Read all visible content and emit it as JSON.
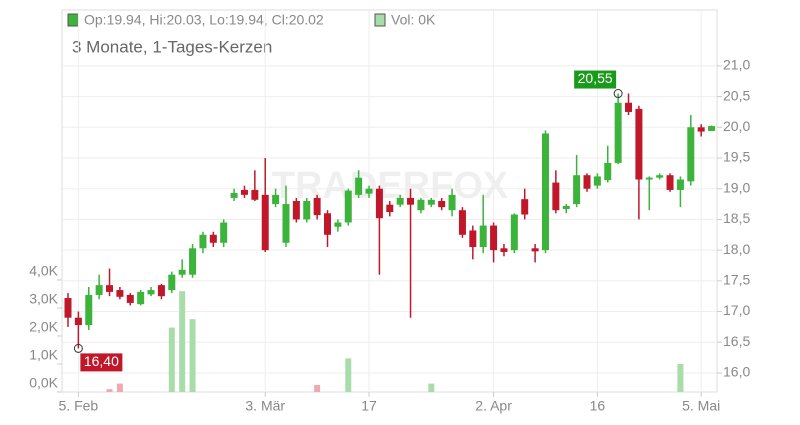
{
  "chart_data": {
    "type": "candlestick",
    "title": "3 Monate, 1-Tages-Kerzen",
    "ohlc_text": "Op:19.94, Hi:20.03, Lo:19.94, Cl:20.02",
    "volume_text": "Vol: 0K",
    "watermark": "TRADERFOX",
    "up_color": "#3cb43c",
    "down_color": "#c0182a",
    "volume_up_color": "#a8dca8",
    "volume_down_color": "#f2a8b0",
    "categories": [
      null,
      "5. Feb",
      null,
      null,
      null,
      null,
      null,
      null,
      null,
      null,
      null,
      null,
      null,
      null,
      null,
      null,
      null,
      null,
      null,
      "3. Mär",
      null,
      null,
      null,
      null,
      null,
      null,
      null,
      null,
      null,
      "17",
      null,
      null,
      null,
      null,
      null,
      null,
      null,
      null,
      null,
      null,
      null,
      "2. Apr",
      null,
      null,
      null,
      null,
      null,
      null,
      null,
      null,
      null,
      "16",
      null,
      null,
      null,
      null,
      null,
      null,
      null,
      null,
      null,
      "5. Mai",
      null
    ],
    "open": [
      17.22,
      16.9,
      16.78,
      17.27,
      17.43,
      17.35,
      17.27,
      17.12,
      17.28,
      17.43,
      17.35,
      17.6,
      17.6,
      18.03,
      18.25,
      18.12,
      18.85,
      18.98,
      18.98,
      18.9,
      18.75,
      18.12,
      18.8,
      18.5,
      18.85,
      18.6,
      18.38,
      18.45,
      18.9,
      18.92,
      19.0,
      18.74,
      18.74,
      18.85,
      18.65,
      18.74,
      18.8,
      18.65,
      18.65,
      18.32,
      18.05,
      18.4,
      18.03,
      18.0,
      18.83,
      18.03,
      18.0,
      19.1,
      18.67,
      18.75,
      19.22,
      19.05,
      19.14,
      19.42,
      20.4,
      20.3,
      19.15,
      19.18,
      19.22,
      18.98,
      19.12,
      20.0,
      19.94
    ],
    "high": [
      17.3,
      17.0,
      17.4,
      17.6,
      17.7,
      17.4,
      17.3,
      17.35,
      17.4,
      17.45,
      17.65,
      17.85,
      18.1,
      18.3,
      18.3,
      18.5,
      19.0,
      19.05,
      19.3,
      19.5,
      19.0,
      19.05,
      18.85,
      18.85,
      18.9,
      18.65,
      18.5,
      19.0,
      19.3,
      19.05,
      19.05,
      18.8,
      18.9,
      19.0,
      18.85,
      18.85,
      18.85,
      19.0,
      18.7,
      18.4,
      18.9,
      18.45,
      18.1,
      18.6,
      19.0,
      18.1,
      19.95,
      19.3,
      18.75,
      19.55,
      19.25,
      19.25,
      19.7,
      20.55,
      20.55,
      20.35,
      19.2,
      19.25,
      19.25,
      19.2,
      20.2,
      20.05,
      20.03
    ],
    "low": [
      16.75,
      16.4,
      16.7,
      17.2,
      17.25,
      17.2,
      17.1,
      17.1,
      17.25,
      17.2,
      17.3,
      17.55,
      17.55,
      17.95,
      18.05,
      18.05,
      18.8,
      18.85,
      18.8,
      17.97,
      18.7,
      18.05,
      18.45,
      18.45,
      18.5,
      18.05,
      18.3,
      18.4,
      18.85,
      18.85,
      17.6,
      18.55,
      18.7,
      16.9,
      18.6,
      18.7,
      18.65,
      18.55,
      18.2,
      17.85,
      17.95,
      17.8,
      17.9,
      17.95,
      18.5,
      17.8,
      17.95,
      18.6,
      18.6,
      18.7,
      18.95,
      19.0,
      19.1,
      19.4,
      20.2,
      18.5,
      18.65,
      19.15,
      18.95,
      18.7,
      19.05,
      19.85,
      19.94
    ],
    "close": [
      16.9,
      16.78,
      17.27,
      17.43,
      17.32,
      17.24,
      17.14,
      17.32,
      17.35,
      17.25,
      17.6,
      17.68,
      18.03,
      18.25,
      18.12,
      18.45,
      18.93,
      18.9,
      18.82,
      18.0,
      18.9,
      18.75,
      18.5,
      18.8,
      18.57,
      18.25,
      18.45,
      18.97,
      19.18,
      19.0,
      18.52,
      18.62,
      18.85,
      18.74,
      18.82,
      18.82,
      18.7,
      18.9,
      18.25,
      18.05,
      18.4,
      18.0,
      17.97,
      18.58,
      18.58,
      17.98,
      19.9,
      18.65,
      18.72,
      19.22,
      19.0,
      19.2,
      19.42,
      20.4,
      20.25,
      19.15,
      19.18,
      19.22,
      18.98,
      19.15,
      20.0,
      19.93,
      20.02
    ],
    "volume": [
      0,
      0,
      0,
      0,
      0.1,
      0.3,
      0,
      0,
      0,
      0,
      2.3,
      3.6,
      2.6,
      0,
      0,
      0,
      0,
      0,
      0,
      0,
      0,
      0,
      0,
      0,
      0.25,
      0,
      0,
      1.2,
      0,
      0,
      0,
      0,
      0,
      0,
      0,
      0.3,
      0,
      0,
      0,
      0,
      0,
      0,
      0,
      0,
      0,
      0,
      0,
      0,
      0,
      0,
      0,
      0,
      0,
      0,
      0,
      0,
      0,
      0,
      0,
      1.0,
      0,
      0,
      0
    ],
    "ylim": [
      15.69,
      21.91
    ],
    "yticks": [
      {
        "value": 16,
        "label": "16,0"
      },
      {
        "value": 16.5,
        "label": "16,5"
      },
      {
        "value": 17,
        "label": "17,0"
      },
      {
        "value": 17.5,
        "label": "17,5"
      },
      {
        "value": 18,
        "label": "18,0"
      },
      {
        "value": 18.5,
        "label": "18,5"
      },
      {
        "value": 19,
        "label": "19,0"
      },
      {
        "value": 19.5,
        "label": "19,5"
      },
      {
        "value": 20,
        "label": "20,0"
      },
      {
        "value": 20.5,
        "label": "20,5"
      },
      {
        "value": 21,
        "label": "21,0"
      }
    ],
    "volume_lim": [
      0,
      13.64
    ],
    "volume_ticks": [
      {
        "value": 0,
        "label": "0,0K"
      },
      {
        "value": 1,
        "label": "1,0K"
      },
      {
        "value": 2,
        "label": "2,0K"
      },
      {
        "value": 3,
        "label": "3,0K"
      },
      {
        "value": 4,
        "label": "4,0K"
      }
    ],
    "annotations": [
      {
        "text": "20,55",
        "value": 20.55,
        "color": "#1a9a1a"
      },
      {
        "text": "16,40",
        "value": 16.4,
        "color": "#c0182a"
      }
    ],
    "grid": true
  }
}
